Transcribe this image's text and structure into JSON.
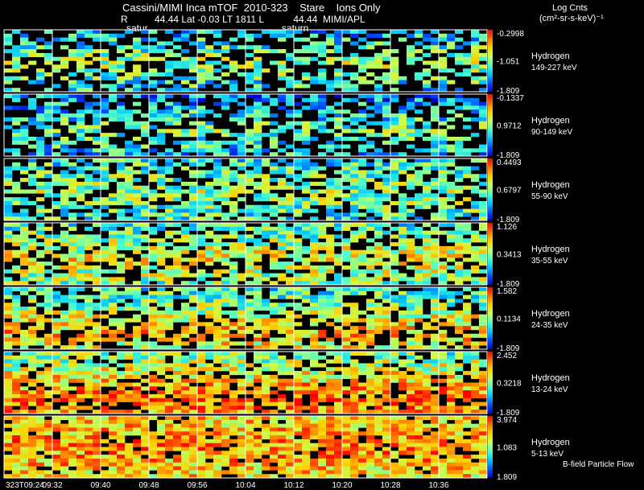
{
  "header": {
    "title": "Cassini/MIMI Inca mTOF  2010-323    Stare    Ions Only",
    "subtitle": "R          44.44 Lat -0.03 LT 1811 L           44.44  MIMI/APL",
    "marker_left": "satur",
    "marker_right": "saturn",
    "units_line1": "Log Cnts",
    "units_line2": "(cm²-sr-s-keV)⁻¹",
    "footnote": "B-field Particle Flow"
  },
  "chart_data": {
    "type": "heatmap",
    "colorscale": [
      "#0000c8",
      "#0050ff",
      "#00c8ff",
      "#50ffc8",
      "#c8ff50",
      "#ffd000",
      "#ff7000",
      "#ff0000"
    ],
    "x_ticks": [
      "323T09:24",
      "09:32",
      "09:40",
      "09:48",
      "09:56",
      "10:04",
      "10:12",
      "10:20",
      "10:28",
      "10:36"
    ],
    "grid": true,
    "series": [
      {
        "name": "Hydrogen",
        "energy": "149-227 keV",
        "colorbar_ticks": [
          "-0.2998",
          "-1.051",
          "-1.809"
        ],
        "mean_level": 0.3,
        "band_center": 0.55,
        "band_strength": 0.25,
        "fill_prob": 0.55
      },
      {
        "name": "Hydrogen",
        "energy": "90-149 keV",
        "colorbar_ticks": [
          "-0.1337",
          "0.9712",
          "-1.809"
        ],
        "mean_level": 0.25,
        "band_center": 0.6,
        "band_strength": 0.2,
        "fill_prob": 0.6
      },
      {
        "name": "Hydrogen",
        "energy": "55-90 keV",
        "colorbar_ticks": [
          "0.4493",
          "0.6797",
          "-1.809"
        ],
        "mean_level": 0.38,
        "band_center": 0.55,
        "band_strength": 0.15,
        "fill_prob": 0.7
      },
      {
        "name": "Hydrogen",
        "energy": "35-55 keV",
        "colorbar_ticks": [
          "1.126",
          "0.3413",
          "-1.809"
        ],
        "mean_level": 0.45,
        "band_center": 0.6,
        "band_strength": 0.2,
        "fill_prob": 0.72
      },
      {
        "name": "Hydrogen",
        "energy": "24-35 keV",
        "colorbar_ticks": [
          "1.582",
          "0.1134",
          "-1.809"
        ],
        "mean_level": 0.5,
        "band_center": 0.75,
        "band_strength": 0.25,
        "fill_prob": 0.72
      },
      {
        "name": "Hydrogen",
        "energy": "13-24 keV",
        "colorbar_ticks": [
          "2.452",
          "0.3218",
          "-1.809"
        ],
        "mean_level": 0.62,
        "band_center": 0.8,
        "band_strength": 0.25,
        "fill_prob": 0.8
      },
      {
        "name": "Hydrogen",
        "energy": "5-13 keV",
        "colorbar_ticks": [
          "3.974",
          "1.083",
          "1.809"
        ],
        "mean_level": 0.7,
        "band_center": 0.5,
        "band_strength": 0.1,
        "fill_prob": 0.9
      }
    ]
  }
}
